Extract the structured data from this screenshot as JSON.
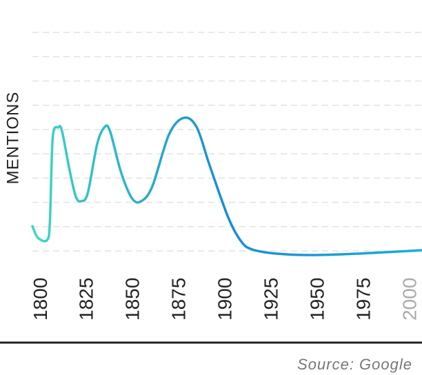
{
  "chart_data": {
    "type": "line",
    "ylabel": "MENTIONS",
    "source": "Source: Google",
    "x": [
      1795,
      1798,
      1803,
      1804.5,
      1806,
      1809,
      1811,
      1815,
      1818.5,
      1821.5,
      1825,
      1830,
      1834,
      1837,
      1843,
      1849,
      1854,
      1860,
      1869,
      1877,
      1884,
      1891,
      1901,
      1908,
      1914,
      1927,
      1946,
      1972,
      2006
    ],
    "values": [
      1.02,
      0.54,
      0.45,
      1.25,
      4.66,
      5.09,
      4.94,
      3.38,
      2.24,
      2.05,
      2.39,
      4.38,
      5.09,
      4.94,
      3.24,
      2.16,
      2.05,
      2.67,
      4.8,
      5.48,
      5.09,
      3.52,
      1.39,
      0.4,
      0.06,
      -0.11,
      -0.17,
      -0.11,
      0.03
    ],
    "line_gradient": [
      "#3fd8c0",
      "#1b8bd8",
      "#18b0d4"
    ],
    "xlim": [
      1795,
      2006
    ],
    "xticks": [
      1800,
      1825,
      1850,
      1875,
      1900,
      1925,
      1950,
      1975,
      2000
    ],
    "xtick_colors": [
      "#222",
      "#222",
      "#222",
      "#222",
      "#222",
      "#222",
      "#222",
      "#222",
      "#aaa"
    ],
    "ylim": [
      0,
      9
    ],
    "yticks": [
      0,
      1,
      2,
      3,
      4,
      5,
      6,
      7,
      8,
      9
    ],
    "grid": true
  }
}
